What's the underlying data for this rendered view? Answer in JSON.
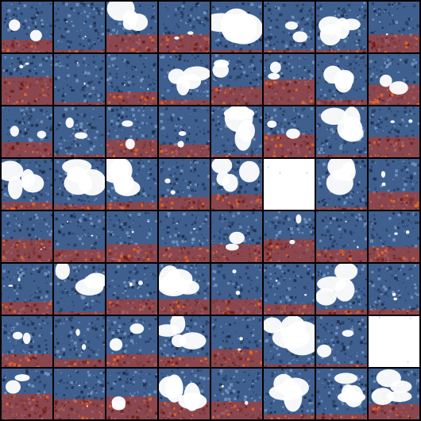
{
  "grid": {
    "rows": 8,
    "cols": 8,
    "tiles": [
      {
        "variant": "dark-blue",
        "white": 0.35,
        "red": 0.25
      },
      {
        "variant": "dark-blue",
        "white": 0.05,
        "red": 0.05
      },
      {
        "variant": "white-top",
        "white": 0.55,
        "red": 0.35
      },
      {
        "variant": "dark-blue",
        "white": 0.15,
        "red": 0.35
      },
      {
        "variant": "white-top",
        "white": 0.75,
        "red": 0.05
      },
      {
        "variant": "dark-blue",
        "white": 0.35,
        "red": 0.05
      },
      {
        "variant": "white-top",
        "white": 0.55,
        "red": 0.05
      },
      {
        "variant": "dark-blue",
        "white": 0.05,
        "red": 0.35
      },
      {
        "variant": "dark-blue",
        "white": 0.1,
        "red": 0.55
      },
      {
        "variant": "dark-blue",
        "white": 0.05,
        "red": 0.05
      },
      {
        "variant": "dark-blue",
        "white": 0.05,
        "red": 0.25
      },
      {
        "variant": "white-top",
        "white": 0.55,
        "red": 0.1
      },
      {
        "variant": "dark-blue",
        "white": 0.35,
        "red": 0.35
      },
      {
        "variant": "dark-blue",
        "white": 0.25,
        "red": 0.5
      },
      {
        "variant": "white-top",
        "white": 0.55,
        "red": 0.1
      },
      {
        "variant": "dark-blue",
        "white": 0.45,
        "red": 0.4
      },
      {
        "variant": "dark-blue",
        "white": 0.3,
        "red": 0.3
      },
      {
        "variant": "dark-blue",
        "white": 0.25,
        "red": 0.05
      },
      {
        "variant": "dark-blue",
        "white": 0.3,
        "red": 0.35
      },
      {
        "variant": "dark-blue",
        "white": 0.15,
        "red": 0.25
      },
      {
        "variant": "white-top",
        "white": 0.65,
        "red": 0.05
      },
      {
        "variant": "dark-blue",
        "white": 0.35,
        "red": 0.45
      },
      {
        "variant": "white-top",
        "white": 0.55,
        "red": 0.05
      },
      {
        "variant": "dark-blue",
        "white": 0.1,
        "red": 0.4
      },
      {
        "variant": "white-top",
        "white": 0.55,
        "red": 0.15
      },
      {
        "variant": "white-top",
        "white": 0.6,
        "red": 0.1
      },
      {
        "variant": "white-top",
        "white": 0.7,
        "red": 0.15
      },
      {
        "variant": "dark-blue",
        "white": 0.15,
        "red": 0.25
      },
      {
        "variant": "white-top",
        "white": 0.45,
        "red": 0.3
      },
      {
        "variant": "blank",
        "white": 1.0,
        "red": 0.0
      },
      {
        "variant": "white-top",
        "white": 0.55,
        "red": 0.05
      },
      {
        "variant": "dark-blue",
        "white": 0.15,
        "red": 0.35
      },
      {
        "variant": "dark-blue",
        "white": 0.05,
        "red": 0.45
      },
      {
        "variant": "dark-blue",
        "white": 0.05,
        "red": 0.25
      },
      {
        "variant": "dark-blue",
        "white": 0.05,
        "red": 0.35
      },
      {
        "variant": "dark-blue",
        "white": 0.05,
        "red": 0.3
      },
      {
        "variant": "dark-blue",
        "white": 0.3,
        "red": 0.35
      },
      {
        "variant": "dark-blue",
        "white": 0.2,
        "red": 0.45
      },
      {
        "variant": "dark-blue",
        "white": 0.05,
        "red": 0.25
      },
      {
        "variant": "dark-blue",
        "white": 0.1,
        "red": 0.3
      },
      {
        "variant": "dark-blue",
        "white": 0.1,
        "red": 0.25
      },
      {
        "variant": "white-top",
        "white": 0.55,
        "red": 0.05
      },
      {
        "variant": "dark-blue",
        "white": 0.1,
        "red": 0.3
      },
      {
        "variant": "white-top",
        "white": 0.6,
        "red": 0.3
      },
      {
        "variant": "dark-blue",
        "white": 0.15,
        "red": 0.3
      },
      {
        "variant": "dark-blue",
        "white": 0.05,
        "red": 0.2
      },
      {
        "variant": "white-top",
        "white": 0.6,
        "red": 0.1
      },
      {
        "variant": "dark-blue",
        "white": 0.1,
        "red": 0.1
      },
      {
        "variant": "dark-blue",
        "white": 0.3,
        "red": 0.25
      },
      {
        "variant": "dark-blue",
        "white": 0.15,
        "red": 0.15
      },
      {
        "variant": "dark-blue",
        "white": 0.3,
        "red": 0.25
      },
      {
        "variant": "white-top",
        "white": 0.55,
        "red": 0.2
      },
      {
        "variant": "dark-blue",
        "white": 0.1,
        "red": 0.35
      },
      {
        "variant": "white-top",
        "white": 0.75,
        "red": 0.05
      },
      {
        "variant": "dark-blue",
        "white": 0.35,
        "red": 0.05
      },
      {
        "variant": "blank",
        "white": 1.0,
        "red": 0.0
      },
      {
        "variant": "dark-blue",
        "white": 0.3,
        "red": 0.5
      },
      {
        "variant": "dark-blue",
        "white": 0.05,
        "red": 0.4
      },
      {
        "variant": "dark-blue",
        "white": 0.3,
        "red": 0.45
      },
      {
        "variant": "white-top",
        "white": 0.65,
        "red": 0.35
      },
      {
        "variant": "dark-blue",
        "white": 0.1,
        "red": 0.35
      },
      {
        "variant": "white-top",
        "white": 0.65,
        "red": 0.1
      },
      {
        "variant": "white-top",
        "white": 0.55,
        "red": 0.1
      },
      {
        "variant": "white-top",
        "white": 0.55,
        "red": 0.3
      }
    ]
  },
  "colors": {
    "background": "#000000",
    "blue": "#3f5f8f",
    "blue_dark": "#243a5c",
    "blue_light": "#7f9fc7",
    "white": "#ffffff",
    "red": "#c8331c",
    "red_dark": "#6e1810",
    "orange": "#f06a24"
  }
}
